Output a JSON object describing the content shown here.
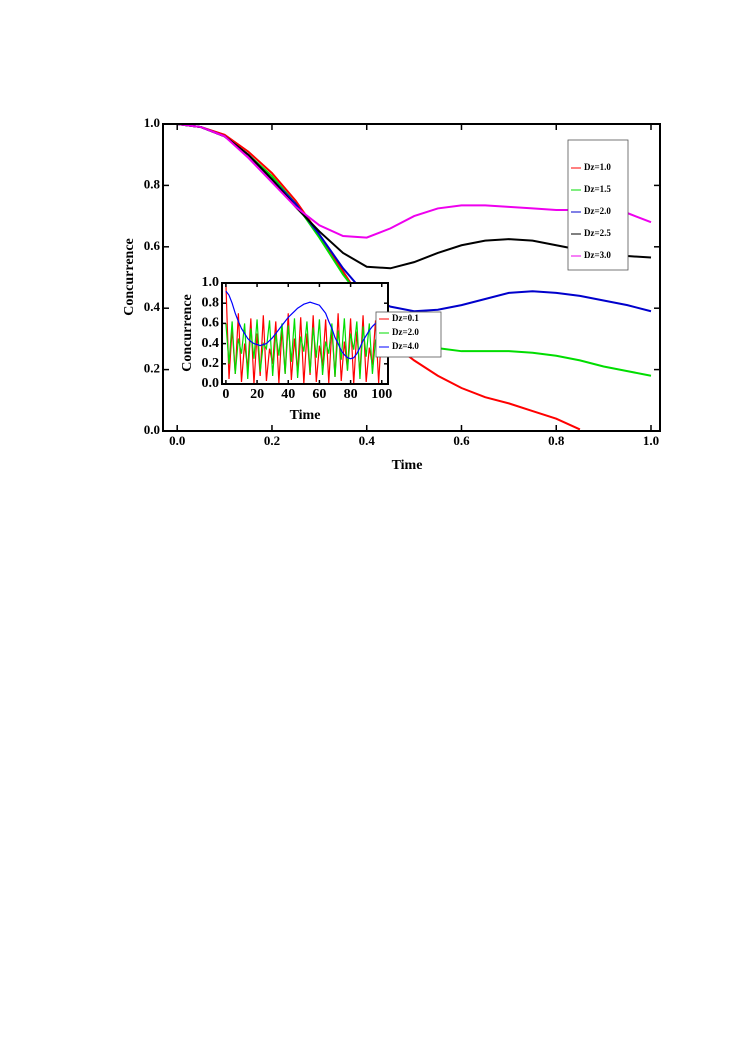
{
  "chart_data": [
    {
      "type": "line",
      "xlabel": "Time",
      "ylabel": "Concurrence",
      "x": [
        0,
        0.05,
        0.1,
        0.15,
        0.2,
        0.25,
        0.3,
        0.35,
        0.4,
        0.45,
        0.5,
        0.55,
        0.6,
        0.65,
        0.7,
        0.75,
        0.8,
        0.85,
        0.9,
        0.95,
        1.0
      ],
      "series": [
        {
          "name": "Dz=1.0",
          "color": "#ff0000",
          "values": [
            1,
            0.99,
            0.965,
            0.91,
            0.84,
            0.75,
            0.64,
            0.52,
            0.4,
            0.29,
            0.23,
            0.18,
            0.14,
            0.11,
            0.09,
            0.065,
            0.04,
            0.005,
            null,
            null,
            null
          ]
        },
        {
          "name": "Dz=1.5",
          "color": "#00dd00",
          "values": [
            1,
            0.99,
            0.96,
            0.9,
            0.83,
            0.74,
            0.63,
            0.51,
            0.41,
            0.35,
            0.3,
            0.27,
            0.26,
            0.26,
            0.26,
            0.255,
            0.245,
            0.23,
            0.21,
            0.195,
            0.18
          ]
        },
        {
          "name": "Dz=2.0",
          "color": "#0000cc",
          "values": [
            1,
            0.99,
            0.96,
            0.9,
            0.82,
            0.74,
            0.64,
            0.53,
            0.44,
            0.405,
            0.39,
            0.395,
            0.41,
            0.43,
            0.45,
            0.455,
            0.45,
            0.44,
            0.425,
            0.41,
            0.39
          ]
        },
        {
          "name": "Dz=2.5",
          "color": "#000000",
          "values": [
            1,
            0.99,
            0.96,
            0.9,
            0.82,
            0.73,
            0.65,
            0.58,
            0.535,
            0.53,
            0.55,
            0.58,
            0.605,
            0.62,
            0.625,
            0.62,
            0.605,
            0.59,
            0.58,
            0.57,
            0.565
          ]
        },
        {
          "name": "Dz=3.0",
          "color": "#ee00ee",
          "values": [
            1,
            0.99,
            0.96,
            0.89,
            0.81,
            0.73,
            0.67,
            0.635,
            0.63,
            0.66,
            0.7,
            0.725,
            0.735,
            0.735,
            0.73,
            0.725,
            0.72,
            0.72,
            0.72,
            0.71,
            0.68
          ]
        }
      ],
      "xlim": [
        -0.03,
        1.019
      ],
      "ylim": [
        0,
        1
      ],
      "xticks": [
        {
          "value": 0,
          "label": "0.0"
        },
        0.2,
        0.4,
        0.6,
        0.8,
        {
          "value": 1,
          "label": "1.0"
        }
      ],
      "yticks": [
        {
          "value": 0,
          "label": "0.0"
        },
        0.2,
        0.4,
        0.6,
        0.8,
        {
          "value": 1,
          "label": "1.0"
        }
      ]
    },
    {
      "type": "line",
      "xlabel": "Time",
      "ylabel": "Concurrence",
      "x": [
        0,
        2,
        4,
        6,
        8,
        10,
        12,
        14,
        16,
        18,
        20,
        22,
        24,
        26,
        28,
        30,
        32,
        34,
        36,
        38,
        40,
        42,
        44,
        46,
        48,
        50,
        52,
        54,
        56,
        58,
        60,
        62,
        64,
        66,
        68,
        70,
        72,
        74,
        76,
        78,
        80,
        82,
        84,
        86,
        88,
        90,
        92,
        94,
        96,
        98,
        100
      ],
      "series": [
        {
          "name": "Dz=0.1",
          "color": "#ff0000",
          "values": [
            1.0,
            0.05,
            0.55,
            0.1,
            0.7,
            0.02,
            0.4,
            0.15,
            0.65,
            0.0,
            0.5,
            0.08,
            0.68,
            0.03,
            0.35,
            0.2,
            0.62,
            0.01,
            0.55,
            0.1,
            0.7,
            0.04,
            0.45,
            0.12,
            0.66,
            0.0,
            0.5,
            0.09,
            0.68,
            0.02,
            0.38,
            0.18,
            0.64,
            0.01,
            0.55,
            0.07,
            0.7,
            0.03,
            0.42,
            0.14,
            0.65,
            0.0,
            0.52,
            0.1,
            0.68,
            0.02,
            0.36,
            0.19,
            0.63,
            0.01,
            0.56
          ]
        },
        {
          "name": "Dz=2.0",
          "color": "#00dd00",
          "values": [
            0.6,
            0.2,
            0.62,
            0.1,
            0.45,
            0.3,
            0.6,
            0.05,
            0.55,
            0.25,
            0.64,
            0.12,
            0.4,
            0.35,
            0.63,
            0.08,
            0.5,
            0.28,
            0.6,
            0.1,
            0.58,
            0.22,
            0.65,
            0.06,
            0.47,
            0.32,
            0.62,
            0.11,
            0.56,
            0.26,
            0.64,
            0.09,
            0.42,
            0.3,
            0.6,
            0.07,
            0.53,
            0.24,
            0.65,
            0.13,
            0.5,
            0.34,
            0.62,
            0.05,
            0.57,
            0.27,
            0.6,
            0.1,
            0.44,
            0.31,
            0.63
          ]
        },
        {
          "name": "Dz=4.0",
          "color": "#0000ff",
          "values": [
            0.92,
            0.88,
            0.8,
            0.7,
            0.62,
            0.55,
            0.5,
            0.45,
            0.42,
            0.4,
            0.39,
            0.38,
            0.39,
            0.4,
            0.43,
            0.46,
            0.5,
            0.54,
            0.58,
            0.62,
            0.66,
            0.69,
            0.72,
            0.75,
            0.77,
            0.79,
            0.8,
            0.81,
            0.8,
            0.79,
            0.78,
            0.74,
            0.7,
            0.62,
            0.55,
            0.46,
            0.4,
            0.33,
            0.29,
            0.26,
            0.25,
            0.26,
            0.3,
            0.36,
            0.43,
            0.48,
            0.53,
            0.57,
            0.6,
            0.62,
            0.62
          ]
        }
      ],
      "xlim": [
        -2.5,
        104
      ],
      "ylim": [
        0,
        1
      ],
      "xticks": [
        0,
        20,
        40,
        60,
        80,
        100
      ],
      "yticks": [
        {
          "value": 0,
          "label": "0.0"
        },
        0.2,
        0.4,
        0.6,
        0.8,
        {
          "value": 1,
          "label": "1.0"
        }
      ]
    }
  ]
}
